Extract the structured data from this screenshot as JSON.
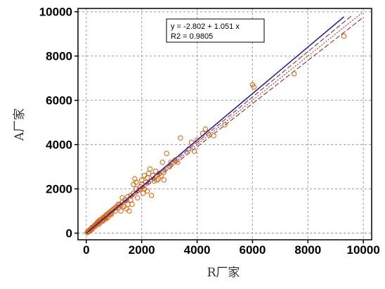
{
  "chart_data": {
    "type": "scatter",
    "xlabel": "R厂家",
    "ylabel": "A厂家",
    "xlim": [
      -300,
      10300
    ],
    "ylim": [
      -300,
      10150
    ],
    "x_ticks": [
      0,
      2000,
      4000,
      6000,
      8000,
      10000
    ],
    "y_ticks": [
      0,
      2000,
      4000,
      6000,
      8000,
      10000
    ],
    "grid": true,
    "annotation": {
      "line1": "y = -2.802  +  1.051  x",
      "line2": "R2 = 0.9805"
    },
    "regression": {
      "intercept": -2.802,
      "slope": 1.051,
      "x_range": [
        0,
        9300
      ]
    },
    "identity_line": {
      "x_range": [
        0,
        10000
      ]
    },
    "confidence_band": {
      "lower_factor": 0.975,
      "upper_factor": 1.025
    },
    "colors": {
      "points": "#e06000",
      "regression": "#2222aa",
      "identity": "#cc1111",
      "band": "#8b1a1a",
      "grid": "#999999"
    },
    "points": [
      [
        30,
        20
      ],
      [
        50,
        60
      ],
      [
        80,
        70
      ],
      [
        100,
        90
      ],
      [
        120,
        150
      ],
      [
        150,
        130
      ],
      [
        180,
        200
      ],
      [
        200,
        250
      ],
      [
        220,
        180
      ],
      [
        250,
        280
      ],
      [
        280,
        300
      ],
      [
        300,
        350
      ],
      [
        320,
        310
      ],
      [
        350,
        400
      ],
      [
        380,
        450
      ],
      [
        400,
        420
      ],
      [
        420,
        520
      ],
      [
        450,
        480
      ],
      [
        480,
        550
      ],
      [
        500,
        600
      ],
      [
        520,
        500
      ],
      [
        550,
        620
      ],
      [
        580,
        560
      ],
      [
        600,
        700
      ],
      [
        620,
        650
      ],
      [
        650,
        720
      ],
      [
        680,
        680
      ],
      [
        700,
        800
      ],
      [
        720,
        750
      ],
      [
        750,
        850
      ],
      [
        780,
        700
      ],
      [
        800,
        900
      ],
      [
        820,
        820
      ],
      [
        850,
        950
      ],
      [
        880,
        880
      ],
      [
        900,
        1000
      ],
      [
        950,
        1050
      ],
      [
        1000,
        1100
      ],
      [
        1050,
        1000
      ],
      [
        1100,
        1200
      ],
      [
        1150,
        1150
      ],
      [
        1200,
        1300
      ],
      [
        1250,
        1250
      ],
      [
        1300,
        1400
      ],
      [
        1350,
        1200
      ],
      [
        1400,
        1500
      ],
      [
        1450,
        1100
      ],
      [
        1500,
        1650
      ],
      [
        1550,
        1000
      ],
      [
        1600,
        1700
      ],
      [
        1650,
        1300
      ],
      [
        1700,
        1800
      ],
      [
        1750,
        2450
      ],
      [
        1800,
        2300
      ],
      [
        1850,
        1600
      ],
      [
        1900,
        1950
      ],
      [
        1950,
        2100
      ],
      [
        2000,
        2200
      ],
      [
        2050,
        1800
      ],
      [
        2100,
        2000
      ],
      [
        2150,
        2300
      ],
      [
        2200,
        2500
      ],
      [
        2250,
        2700
      ],
      [
        2300,
        2900
      ],
      [
        2350,
        1700
      ],
      [
        2400,
        2600
      ],
      [
        2500,
        2800
      ],
      [
        2550,
        2400
      ],
      [
        2600,
        2450
      ],
      [
        2650,
        2700
      ],
      [
        2700,
        2600
      ],
      [
        2750,
        3200
      ],
      [
        2800,
        2400
      ],
      [
        2900,
        3600
      ],
      [
        3000,
        3000
      ],
      [
        3100,
        3150
      ],
      [
        3200,
        3300
      ],
      [
        3300,
        3200
      ],
      [
        3400,
        4300
      ],
      [
        3700,
        3800
      ],
      [
        3800,
        4100
      ],
      [
        3900,
        3700
      ],
      [
        4000,
        4200
      ],
      [
        4200,
        4500
      ],
      [
        4300,
        4700
      ],
      [
        4400,
        4500
      ],
      [
        4600,
        4400
      ],
      [
        5000,
        4900
      ],
      [
        6000,
        6700
      ],
      [
        6050,
        6600
      ],
      [
        7500,
        7200
      ],
      [
        9300,
        8900
      ],
      [
        1700,
        2200
      ],
      [
        1600,
        1500
      ],
      [
        2200,
        1900
      ],
      [
        1500,
        1300
      ],
      [
        1300,
        1600
      ],
      [
        1250,
        1000
      ],
      [
        2800,
        2750
      ],
      [
        3050,
        3200
      ],
      [
        1800,
        2000
      ],
      [
        2000,
        2400
      ],
      [
        2100,
        2600
      ],
      [
        2450,
        2350
      ],
      [
        1150,
        1300
      ],
      [
        900,
        850
      ],
      [
        1050,
        1150
      ],
      [
        700,
        650
      ],
      [
        600,
        550
      ],
      [
        450,
        400
      ]
    ]
  }
}
